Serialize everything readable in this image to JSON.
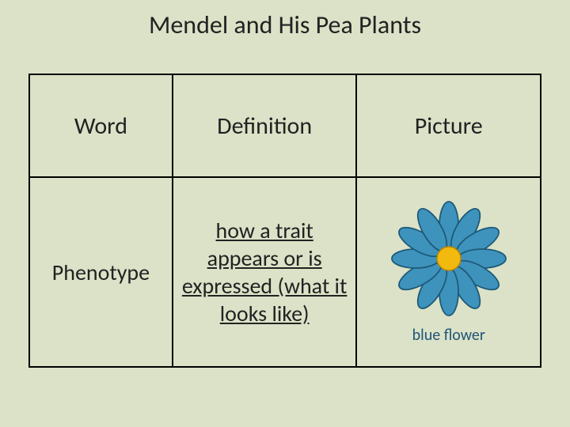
{
  "title": "Mendel and His Pea Plants",
  "table": {
    "columns": [
      "Word",
      "Definition",
      "Picture"
    ],
    "row": {
      "word": "Phenotype",
      "definition": "how a trait appears or is expressed (what it looks like)",
      "picture_caption": "blue flower"
    }
  },
  "flower": {
    "petal_fill": "#3e93bd",
    "petal_stroke": "#1e5a78",
    "center_fill": "#f2b90f",
    "center_stroke": "#b88400",
    "petal_count": 12,
    "width": 150,
    "height": 150
  },
  "colors": {
    "background": "#dbe2c7",
    "text": "#222222",
    "caption": "#1f547a",
    "border": "#000000"
  },
  "fonts": {
    "title_size": 32,
    "header_size": 30,
    "cell_size": 28,
    "caption_size": 20
  }
}
